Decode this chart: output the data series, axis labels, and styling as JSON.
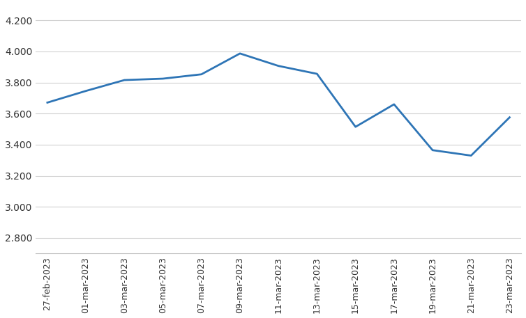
{
  "dates": [
    "27-feb-2023",
    "01-mar-2023",
    "03-mar-2023",
    "05-mar-2023",
    "07-mar-2023",
    "09-mar-2023",
    "11-mar-2023",
    "13-mar-2023",
    "15-mar-2023",
    "17-mar-2023",
    "19-mar-2023",
    "21-mar-2023",
    "23-mar-2023"
  ],
  "values": [
    3.671,
    3.746,
    3.816,
    3.825,
    3.853,
    3.987,
    3.907,
    3.856,
    3.515,
    3.66,
    3.365,
    3.33,
    3.576
  ],
  "line_color": "#2e75b6",
  "line_width": 2.0,
  "ylim": [
    2.7,
    4.3
  ],
  "yticks": [
    2.8,
    3.0,
    3.2,
    3.4,
    3.6,
    3.8,
    4.0,
    4.2
  ],
  "background_color": "#ffffff",
  "grid_color": "#d0d0d0",
  "spine_color": "#c0c0c0",
  "tick_label_color": "#333333"
}
